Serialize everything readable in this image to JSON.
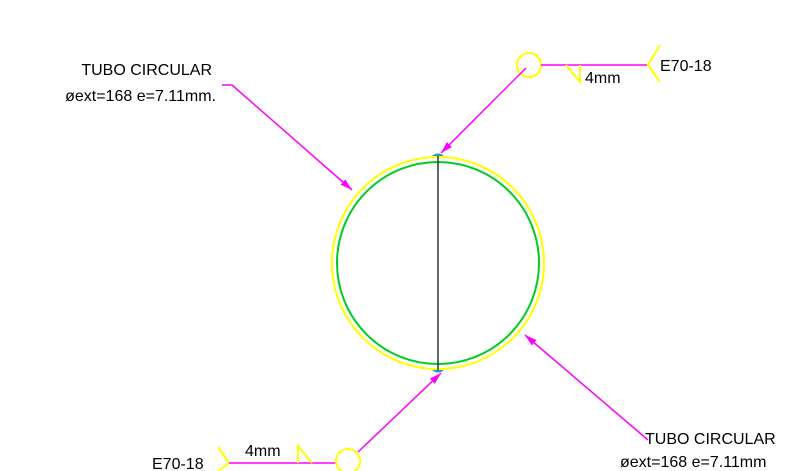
{
  "callouts": [
    {
      "title": "TUBO CIRCULAR",
      "spec": "øext=168 e=7.11mm."
    },
    {
      "title": "TUBO CIRCULAR",
      "spec": "øext=168 e=7.11mm"
    }
  ],
  "welds": [
    {
      "size": "4mm",
      "electrode": "E70-18"
    },
    {
      "size": "4mm",
      "electrode": "E70-18"
    }
  ]
}
